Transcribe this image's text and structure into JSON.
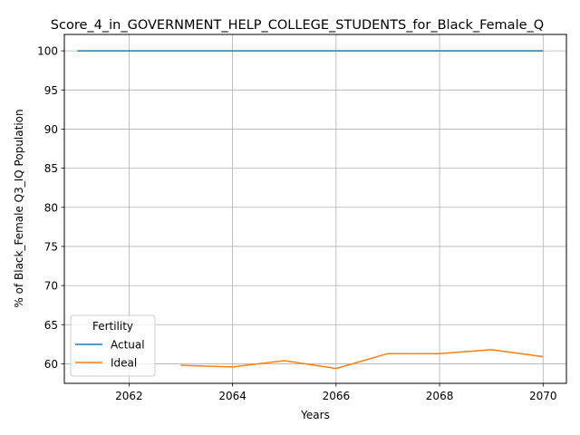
{
  "chart_data": {
    "type": "line",
    "title": "Score_4_in_GOVERNMENT_HELP_COLLEGE_STUDENTS_for_Black_Female_Q",
    "xlabel": "Years",
    "ylabel": "% of Black_Female Q3_IQ Population",
    "xlim": [
      2060.75,
      2070.45
    ],
    "ylim": [
      57.5,
      102.1
    ],
    "xticks": [
      2062,
      2064,
      2066,
      2068,
      2070
    ],
    "yticks": [
      60,
      65,
      70,
      75,
      80,
      85,
      90,
      95,
      100
    ],
    "grid": true,
    "legend": {
      "title": "Fertility",
      "placement": "lower-left"
    },
    "series": [
      {
        "name": "Actual",
        "color": "#1f77b4",
        "points": [
          [
            2061,
            100
          ],
          [
            2062,
            100
          ],
          [
            2063,
            100
          ],
          [
            2064,
            100
          ],
          [
            2065,
            100
          ],
          [
            2066,
            100
          ],
          [
            2067,
            100
          ],
          [
            2068,
            100
          ],
          [
            2069,
            100
          ],
          [
            2070,
            100
          ]
        ]
      },
      {
        "name": "Ideal",
        "color": "#ff7f0e",
        "points": [
          [
            2063,
            59.8
          ],
          [
            2064,
            59.6
          ],
          [
            2065,
            60.4
          ],
          [
            2066,
            59.4
          ],
          [
            2067,
            61.3
          ],
          [
            2068,
            61.3
          ],
          [
            2069,
            61.8
          ],
          [
            2070,
            60.9
          ]
        ]
      }
    ]
  }
}
